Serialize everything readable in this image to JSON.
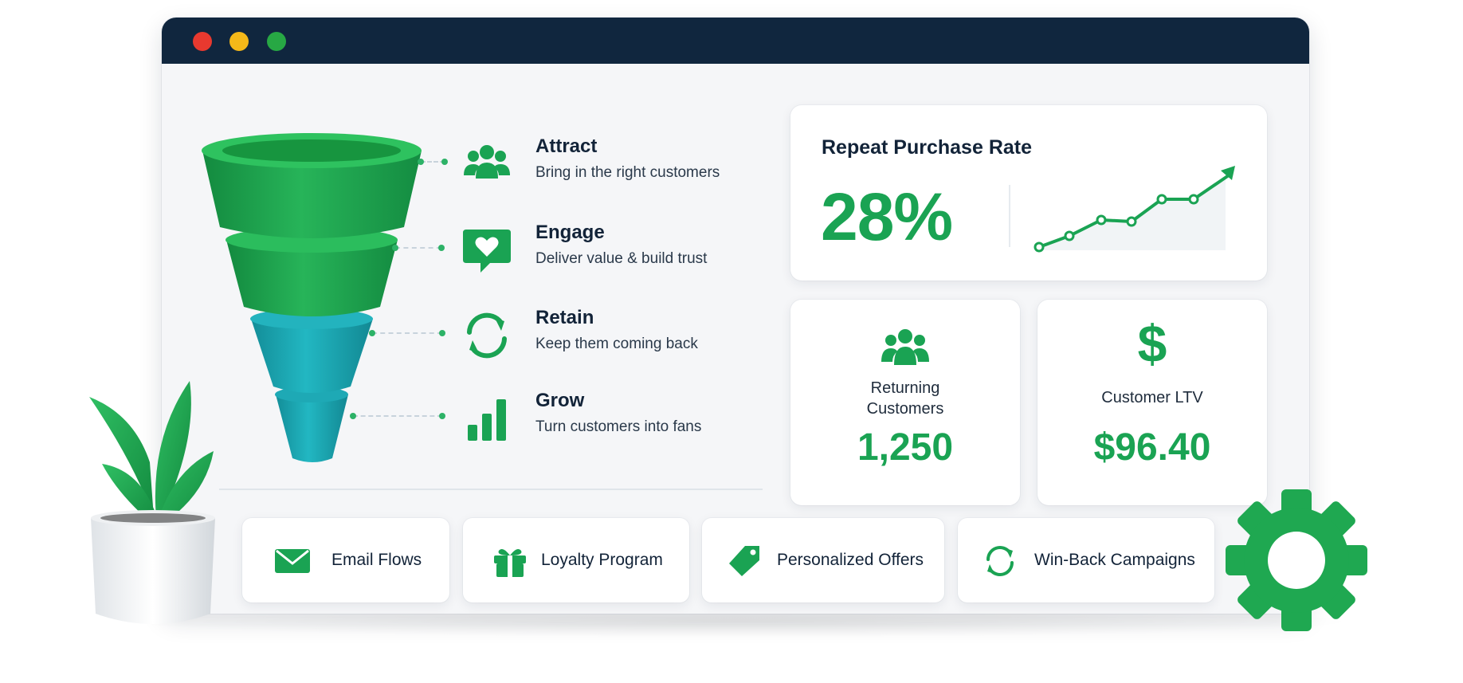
{
  "window": {
    "controls": [
      "close",
      "minimize",
      "maximize"
    ]
  },
  "funnel": {
    "stages": [
      {
        "title": "Attract",
        "description": "Bring in the right customers",
        "icon": "people-icon"
      },
      {
        "title": "Engage",
        "description": "Deliver value & build trust",
        "icon": "heart-chat-icon"
      },
      {
        "title": "Retain",
        "description": "Keep them coming back",
        "icon": "refresh-icon"
      },
      {
        "title": "Grow",
        "description": "Turn customers into fans",
        "icon": "bar-chart-icon"
      }
    ]
  },
  "repeat_purchase": {
    "title": "Repeat Purchase Rate",
    "value": "28%",
    "trend_icon": "line-trend-up-icon"
  },
  "metrics": [
    {
      "label": "Returning Customers",
      "value": "1,250",
      "icon": "people-icon"
    },
    {
      "label": "Customer LTV",
      "value": "$96.40",
      "icon": "dollar-icon"
    }
  ],
  "actions": [
    {
      "label": "Email Flows",
      "icon": "envelope-icon"
    },
    {
      "label": "Loyalty Program",
      "icon": "gift-icon"
    },
    {
      "label": "Personalized Offers",
      "icon": "tag-icon"
    },
    {
      "label": "Win-Back Campaigns",
      "icon": "refresh-icon"
    }
  ],
  "colors": {
    "accent": "#1aa353",
    "teal": "#1ba7b4",
    "titlebar": "#10263e",
    "text": "#122338"
  },
  "decor": {
    "plant": "potted-plant-icon",
    "gear": "gear-icon"
  }
}
